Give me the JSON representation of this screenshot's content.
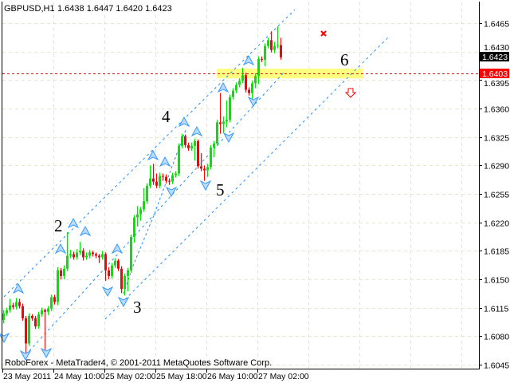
{
  "header": {
    "symbol_timeframe": "GBPUSD,H1",
    "ohlc_text": "1.6438 1.6447 1.6420 1.6423"
  },
  "footer": {
    "copyright": "RoboForex - MetaTrader4, © 2001-2011 MetaQuotes Software Corp."
  },
  "price_labels": {
    "current": "1.6423",
    "level": "1.6403"
  },
  "wave_labels": [
    "2",
    "3",
    "4",
    "5",
    "6"
  ],
  "colors": {
    "bull": "#00e600",
    "bear": "#ff0000",
    "grid": "#e6e6c8",
    "channel": "#1e90ff",
    "fractal": "#3399ff",
    "level_line": "#ff0000",
    "zone": "#ffff80",
    "current_label_bg": "#000000",
    "level_label_bg": "#ff0000"
  },
  "chart_data": {
    "type": "candlestick",
    "symbol": "GBPUSD",
    "timeframe": "H1",
    "ylim": [
      1.6027,
      1.6492
    ],
    "grid": true,
    "y_ticks": [
      "1.6465",
      "1.6430",
      "1.6395",
      "1.6360",
      "1.6325",
      "1.6290",
      "1.6255",
      "1.6220",
      "1.6185",
      "1.6150",
      "1.6115",
      "1.6080",
      "1.6045"
    ],
    "x_ticks": [
      {
        "label": "23 May 2011",
        "bar": 0
      },
      {
        "label": "24 May 10:00",
        "bar": 16
      },
      {
        "label": "25 May 02:00",
        "bar": 32
      },
      {
        "label": "25 May 18:00",
        "bar": 48
      },
      {
        "label": "26 May 10:00",
        "bar": 64
      },
      {
        "label": "27 May 02:00",
        "bar": 80
      }
    ],
    "level_line_price": 1.6403,
    "zone": {
      "from_price": 1.6397,
      "to_price": 1.6409
    },
    "candles_ohlc": [
      [
        1.61,
        1.6112,
        1.6096,
        1.6108
      ],
      [
        1.6108,
        1.6115,
        1.6105,
        1.6112
      ],
      [
        1.6112,
        1.6126,
        1.6109,
        1.6118
      ],
      [
        1.6118,
        1.6121,
        1.6113,
        1.6116
      ],
      [
        1.6116,
        1.6127,
        1.6113,
        1.6122
      ],
      [
        1.6122,
        1.6126,
        1.6114,
        1.6117
      ],
      [
        1.6117,
        1.612,
        1.6099,
        1.6102
      ],
      [
        1.6102,
        1.6105,
        1.6056,
        1.6071
      ],
      [
        1.6071,
        1.6108,
        1.6068,
        1.6105
      ],
      [
        1.6105,
        1.6107,
        1.6099,
        1.6102
      ],
      [
        1.6102,
        1.6105,
        1.6089,
        1.6092
      ],
      [
        1.6092,
        1.611,
        1.6089,
        1.6107
      ],
      [
        1.6107,
        1.6115,
        1.6104,
        1.6112
      ],
      [
        1.6112,
        1.6114,
        1.606,
        1.611
      ],
      [
        1.611,
        1.6117,
        1.6106,
        1.6114
      ],
      [
        1.6114,
        1.6131,
        1.6111,
        1.6128
      ],
      [
        1.6128,
        1.6131,
        1.6119,
        1.6122
      ],
      [
        1.6122,
        1.6165,
        1.6118,
        1.6161
      ],
      [
        1.6161,
        1.6164,
        1.615,
        1.6154
      ],
      [
        1.6154,
        1.6167,
        1.615,
        1.6163
      ],
      [
        1.6163,
        1.6208,
        1.616,
        1.6179
      ],
      [
        1.6179,
        1.6186,
        1.6176,
        1.6181
      ],
      [
        1.6181,
        1.6184,
        1.6174,
        1.6177
      ],
      [
        1.6177,
        1.6187,
        1.6174,
        1.6183
      ],
      [
        1.6183,
        1.6196,
        1.618,
        1.6185
      ],
      [
        1.6185,
        1.6188,
        1.6173,
        1.6177
      ],
      [
        1.6177,
        1.6183,
        1.6174,
        1.6179
      ],
      [
        1.6179,
        1.6186,
        1.6176,
        1.6183
      ],
      [
        1.6183,
        1.6185,
        1.6178,
        1.6181
      ],
      [
        1.6181,
        1.6183,
        1.6176,
        1.6179
      ],
      [
        1.6179,
        1.6181,
        1.617,
        1.6177
      ],
      [
        1.6177,
        1.6185,
        1.6174,
        1.6181
      ],
      [
        1.6181,
        1.6183,
        1.6148,
        1.6161
      ],
      [
        1.6161,
        1.6165,
        1.615,
        1.6154
      ],
      [
        1.6154,
        1.617,
        1.6151,
        1.6167
      ],
      [
        1.6167,
        1.6176,
        1.6164,
        1.6173
      ],
      [
        1.6173,
        1.6175,
        1.616,
        1.6163
      ],
      [
        1.6163,
        1.6166,
        1.6133,
        1.6138
      ],
      [
        1.6138,
        1.6157,
        1.613,
        1.6154
      ],
      [
        1.6154,
        1.6164,
        1.6135,
        1.6161
      ],
      [
        1.6161,
        1.6205,
        1.6158,
        1.6202
      ],
      [
        1.6202,
        1.6229,
        1.6195,
        1.6226
      ],
      [
        1.6226,
        1.624,
        1.6215,
        1.623
      ],
      [
        1.623,
        1.6239,
        1.6222,
        1.6236
      ],
      [
        1.6236,
        1.6262,
        1.6233,
        1.6246
      ],
      [
        1.6246,
        1.6268,
        1.6243,
        1.6265
      ],
      [
        1.6265,
        1.629,
        1.6262,
        1.6274
      ],
      [
        1.6274,
        1.6292,
        1.6266,
        1.627
      ],
      [
        1.627,
        1.628,
        1.6262,
        1.6265
      ],
      [
        1.6265,
        1.6281,
        1.6262,
        1.6277
      ],
      [
        1.6277,
        1.628,
        1.6271,
        1.6276
      ],
      [
        1.6276,
        1.6279,
        1.6268,
        1.6271
      ],
      [
        1.6271,
        1.6274,
        1.6266,
        1.627
      ],
      [
        1.627,
        1.6281,
        1.6267,
        1.6278
      ],
      [
        1.6278,
        1.6283,
        1.6275,
        1.628
      ],
      [
        1.628,
        1.6317,
        1.6277,
        1.6314
      ],
      [
        1.6314,
        1.6329,
        1.6311,
        1.6326
      ],
      [
        1.6326,
        1.6328,
        1.6312,
        1.6315
      ],
      [
        1.6315,
        1.6318,
        1.6308,
        1.6311
      ],
      [
        1.6311,
        1.6318,
        1.6308,
        1.6314
      ],
      [
        1.6314,
        1.6323,
        1.6296,
        1.632
      ],
      [
        1.632,
        1.6322,
        1.6286,
        1.6289
      ],
      [
        1.6289,
        1.6305,
        1.6283,
        1.6286
      ],
      [
        1.6286,
        1.629,
        1.6271,
        1.6284
      ],
      [
        1.6284,
        1.6292,
        1.6276,
        1.6288
      ],
      [
        1.6288,
        1.6315,
        1.6285,
        1.6312
      ],
      [
        1.6312,
        1.632,
        1.63,
        1.6317
      ],
      [
        1.6317,
        1.6346,
        1.6314,
        1.6343
      ],
      [
        1.6343,
        1.6379,
        1.6329,
        1.6341
      ],
      [
        1.6341,
        1.635,
        1.633,
        1.6344
      ],
      [
        1.6344,
        1.637,
        1.6337,
        1.6346
      ],
      [
        1.6346,
        1.6377,
        1.6343,
        1.6374
      ],
      [
        1.6374,
        1.6385,
        1.6371,
        1.6382
      ],
      [
        1.6382,
        1.6392,
        1.6379,
        1.6389
      ],
      [
        1.6389,
        1.6397,
        1.6386,
        1.6394
      ],
      [
        1.6394,
        1.641,
        1.6391,
        1.6401
      ],
      [
        1.6401,
        1.6404,
        1.638,
        1.6383
      ],
      [
        1.6383,
        1.6386,
        1.6376,
        1.6379
      ],
      [
        1.6379,
        1.6394,
        1.637,
        1.6391
      ],
      [
        1.6391,
        1.6403,
        1.6385,
        1.64
      ],
      [
        1.64,
        1.6424,
        1.639,
        1.6421
      ],
      [
        1.6421,
        1.6424,
        1.6417,
        1.642
      ],
      [
        1.642,
        1.644,
        1.6412,
        1.6437
      ],
      [
        1.6437,
        1.6447,
        1.6434,
        1.6444
      ],
      [
        1.6444,
        1.6455,
        1.6429,
        1.6432
      ],
      [
        1.6432,
        1.6442,
        1.6428,
        1.6437
      ],
      [
        1.6437,
        1.6461,
        1.6434,
        1.6438
      ],
      [
        1.6438,
        1.6447,
        1.642,
        1.6423
      ]
    ]
  }
}
